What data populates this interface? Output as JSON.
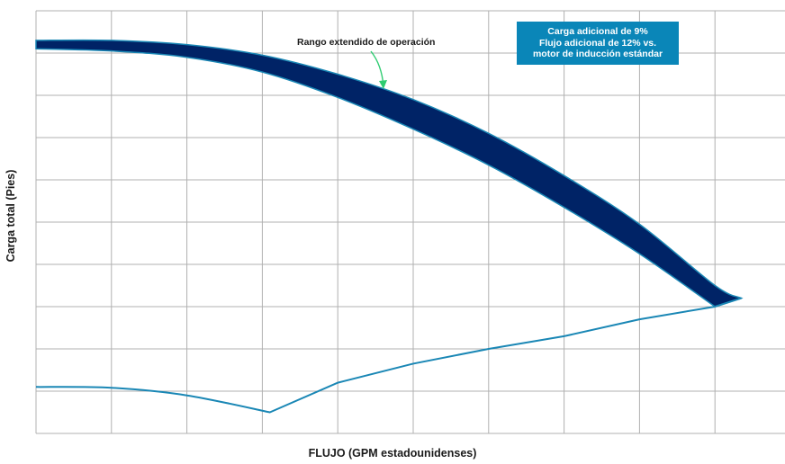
{
  "chart_data": {
    "type": "line",
    "xlabel": "FLUJO (GPM estadounidenses)",
    "ylabel": "Carga total (Pies)",
    "xlim": [
      0,
      10
    ],
    "ylim": [
      0,
      10
    ],
    "grid": true,
    "series": [
      {
        "role": "band-upper",
        "x": [
          0,
          1,
          2,
          3,
          4,
          5,
          6,
          7,
          8,
          9,
          9.35
        ],
        "y": [
          9.3,
          9.3,
          9.2,
          8.95,
          8.5,
          7.9,
          7.1,
          6.1,
          4.95,
          3.5,
          3.2
        ]
      },
      {
        "role": "band-lower",
        "x": [
          0,
          1,
          2,
          3,
          4,
          5,
          6,
          7,
          8,
          9
        ],
        "y": [
          9.1,
          9.05,
          8.9,
          8.55,
          7.95,
          7.2,
          6.35,
          5.35,
          4.25,
          3.0
        ]
      },
      {
        "role": "lower-curve",
        "x": [
          0,
          1,
          2,
          3.1,
          4,
          5,
          6,
          7,
          8,
          9,
          9.35
        ],
        "y": [
          1.1,
          1.08,
          0.9,
          0.5,
          1.2,
          1.65,
          2.0,
          2.3,
          2.7,
          3.0,
          3.2
        ]
      }
    ],
    "annotations": {
      "band_label": "Rango extendido de operación",
      "box_lines": [
        "Carga adicional de 9%",
        "Flujo adicional de 12% vs.",
        "motor de inducción estándar"
      ]
    },
    "colors": {
      "band": "#002366",
      "line": "#1a87b5",
      "arrow": "#2ecc71",
      "box": "#0a86b8",
      "grid": "#b0b0b0"
    }
  }
}
